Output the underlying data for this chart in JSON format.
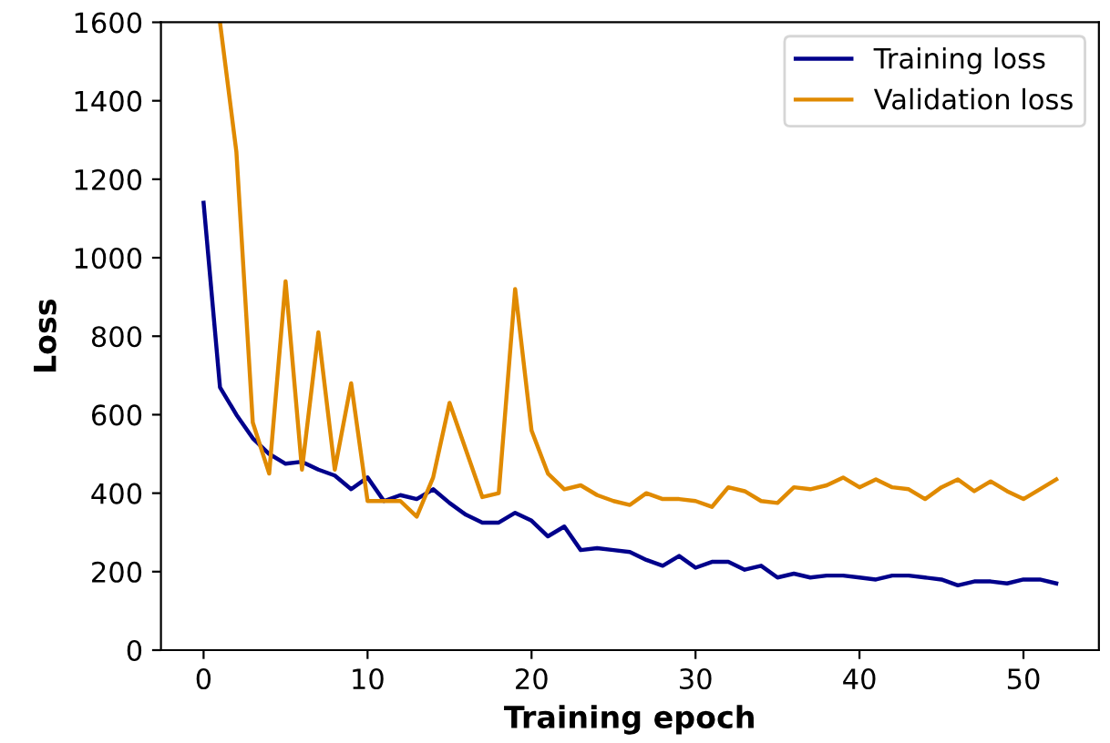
{
  "chart_data": {
    "type": "line",
    "xlabel": "Training epoch",
    "ylabel": "Loss",
    "x": [
      0,
      1,
      2,
      3,
      4,
      5,
      6,
      7,
      8,
      9,
      10,
      11,
      12,
      13,
      14,
      15,
      16,
      17,
      18,
      19,
      20,
      21,
      22,
      23,
      24,
      25,
      26,
      27,
      28,
      29,
      30,
      31,
      32,
      33,
      34,
      35,
      36,
      37,
      38,
      39,
      40,
      41,
      42,
      43,
      44,
      45,
      46,
      47,
      48,
      49,
      50,
      51,
      52
    ],
    "series": [
      {
        "name": "Training loss",
        "color": "#00008b",
        "values": [
          1140,
          670,
          600,
          540,
          500,
          475,
          480,
          460,
          445,
          410,
          440,
          380,
          395,
          385,
          410,
          375,
          345,
          325,
          325,
          350,
          330,
          290,
          315,
          255,
          260,
          255,
          250,
          230,
          215,
          240,
          210,
          225,
          225,
          205,
          215,
          185,
          195,
          185,
          190,
          190,
          185,
          180,
          190,
          190,
          185,
          180,
          165,
          175,
          175,
          170,
          180,
          180,
          170
        ]
      },
      {
        "name": "Validation loss",
        "color": "#e08a00",
        "values": [
          null,
          1600,
          1270,
          580,
          450,
          940,
          460,
          810,
          460,
          680,
          380,
          380,
          380,
          340,
          440,
          630,
          510,
          390,
          400,
          920,
          560,
          450,
          410,
          420,
          395,
          380,
          370,
          400,
          385,
          385,
          380,
          365,
          415,
          405,
          380,
          375,
          415,
          410,
          420,
          440,
          415,
          435,
          415,
          410,
          385,
          415,
          435,
          405,
          430,
          405,
          385,
          410,
          435
        ]
      }
    ],
    "xlim": [
      -2.6,
      54.6
    ],
    "ylim": [
      0,
      1600
    ],
    "xticks": [
      0,
      10,
      20,
      30,
      40,
      50
    ],
    "yticks": [
      0,
      200,
      400,
      600,
      800,
      1000,
      1200,
      1400,
      1600
    ],
    "legend": "top right",
    "grid": false
  }
}
